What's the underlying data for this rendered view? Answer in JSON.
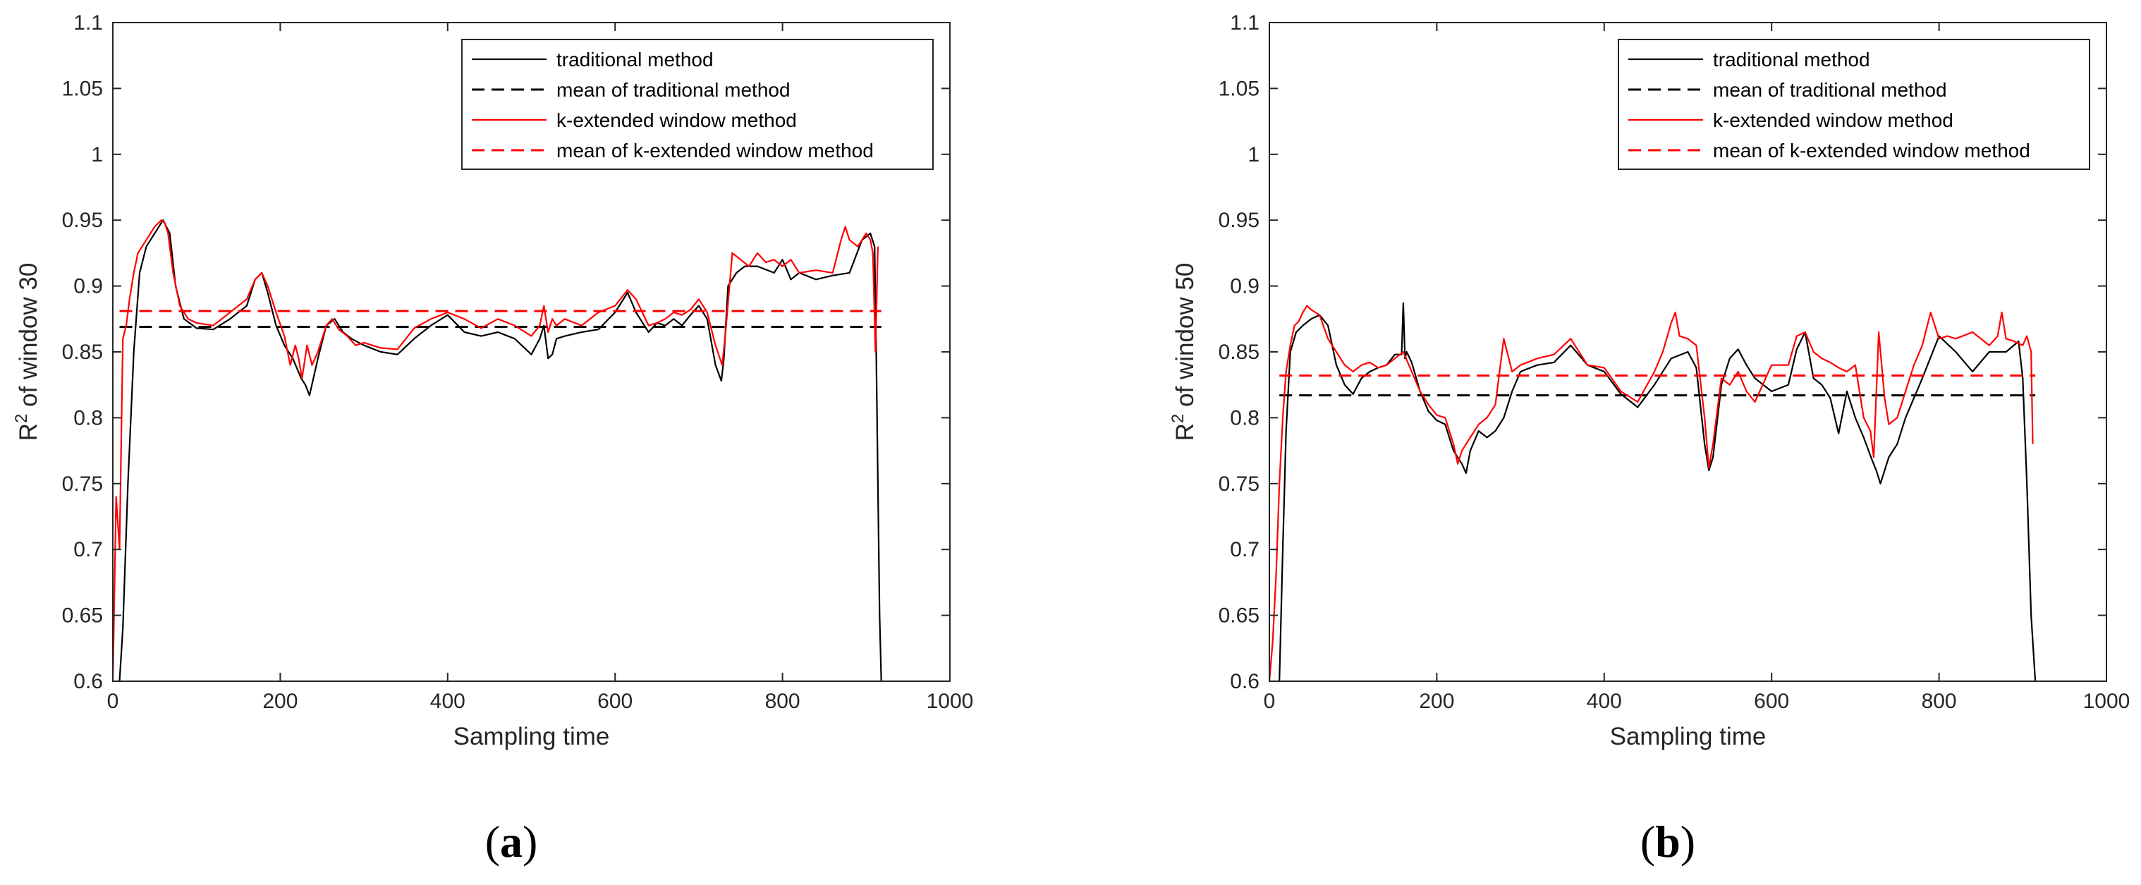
{
  "figure": {
    "captions": [
      {
        "open": "(",
        "letter": "a",
        "close": ")"
      },
      {
        "open": "(",
        "letter": "b",
        "close": ")"
      }
    ]
  },
  "chart_data": [
    {
      "type": "line",
      "xlabel": "Sampling time",
      "ylabel_main": "R",
      "ylabel_sup": "2",
      "ylabel_rest": " of window 30",
      "xlim": [
        0,
        1000
      ],
      "ylim": [
        0.6,
        1.1
      ],
      "xticks": [
        0,
        200,
        400,
        600,
        800,
        1000
      ],
      "xtick_labels": [
        "0",
        "200",
        "400",
        "600",
        "800",
        "1000"
      ],
      "yticks": [
        0.6,
        0.65,
        0.7,
        0.75,
        0.8,
        0.85,
        0.9,
        0.95,
        1.0,
        1.05,
        1.1
      ],
      "ytick_labels": [
        "0.6",
        "0.65",
        "0.7",
        "0.75",
        "0.8",
        "0.85",
        "0.9",
        "0.95",
        "1",
        "1.05",
        "1.1"
      ],
      "legend_position": "top-right",
      "legend": [
        "traditional method",
        "mean of traditional method",
        "k-extended window method",
        "mean of k-extended window method"
      ],
      "series": [
        {
          "name": "traditional method",
          "color": "#000000",
          "style": "solid",
          "x": [
            8,
            12,
            18,
            25,
            32,
            40,
            50,
            60,
            68,
            75,
            85,
            100,
            120,
            140,
            160,
            170,
            178,
            185,
            195,
            205,
            215,
            225,
            230,
            235,
            245,
            255,
            265,
            275,
            285,
            300,
            320,
            340,
            360,
            380,
            400,
            420,
            440,
            460,
            480,
            500,
            510,
            515,
            520,
            525,
            530,
            540,
            560,
            580,
            600,
            615,
            625,
            640,
            650,
            660,
            670,
            680,
            690,
            700,
            710,
            720,
            727,
            730,
            735,
            745,
            755,
            770,
            790,
            800,
            810,
            820,
            840,
            860,
            880,
            895,
            905,
            910,
            912,
            914,
            916,
            918
          ],
          "y": [
            0.6,
            0.64,
            0.75,
            0.85,
            0.91,
            0.93,
            0.94,
            0.95,
            0.94,
            0.9,
            0.875,
            0.868,
            0.867,
            0.875,
            0.885,
            0.905,
            0.91,
            0.895,
            0.87,
            0.855,
            0.845,
            0.83,
            0.825,
            0.817,
            0.845,
            0.87,
            0.875,
            0.865,
            0.86,
            0.855,
            0.85,
            0.848,
            0.86,
            0.87,
            0.878,
            0.865,
            0.862,
            0.865,
            0.86,
            0.848,
            0.86,
            0.87,
            0.845,
            0.848,
            0.86,
            0.862,
            0.865,
            0.867,
            0.88,
            0.895,
            0.88,
            0.865,
            0.872,
            0.87,
            0.875,
            0.87,
            0.878,
            0.885,
            0.875,
            0.84,
            0.828,
            0.845,
            0.9,
            0.91,
            0.915,
            0.915,
            0.91,
            0.92,
            0.905,
            0.91,
            0.905,
            0.908,
            0.91,
            0.935,
            0.94,
            0.93,
            0.85,
            0.75,
            0.65,
            0.6
          ]
        },
        {
          "name": "mean of traditional method",
          "color": "#000000",
          "style": "dashed",
          "x": [
            8,
            918
          ],
          "y": [
            0.869,
            0.869
          ]
        },
        {
          "name": "k-extended window method",
          "color": "#ff0000",
          "style": "solid",
          "x": [
            0,
            4,
            8,
            12,
            16,
            20,
            25,
            30,
            40,
            50,
            58,
            62,
            66,
            72,
            80,
            90,
            100,
            120,
            140,
            160,
            170,
            178,
            185,
            195,
            205,
            212,
            218,
            222,
            226,
            232,
            238,
            245,
            255,
            262,
            270,
            280,
            290,
            300,
            320,
            340,
            360,
            380,
            400,
            420,
            440,
            460,
            480,
            500,
            510,
            515,
            520,
            525,
            530,
            540,
            560,
            580,
            600,
            615,
            625,
            640,
            650,
            660,
            670,
            680,
            690,
            700,
            710,
            720,
            728,
            732,
            740,
            750,
            760,
            770,
            780,
            790,
            800,
            810,
            820,
            840,
            860,
            870,
            875,
            880,
            890,
            900,
            905,
            908,
            911,
            914
          ],
          "y": [
            0.6,
            0.74,
            0.7,
            0.86,
            0.87,
            0.89,
            0.91,
            0.925,
            0.935,
            0.945,
            0.95,
            0.948,
            0.94,
            0.91,
            0.885,
            0.875,
            0.872,
            0.87,
            0.88,
            0.89,
            0.905,
            0.91,
            0.9,
            0.88,
            0.862,
            0.84,
            0.855,
            0.845,
            0.83,
            0.855,
            0.84,
            0.85,
            0.87,
            0.875,
            0.867,
            0.862,
            0.855,
            0.857,
            0.853,
            0.852,
            0.868,
            0.875,
            0.88,
            0.875,
            0.868,
            0.875,
            0.87,
            0.862,
            0.87,
            0.885,
            0.865,
            0.875,
            0.87,
            0.875,
            0.87,
            0.88,
            0.885,
            0.897,
            0.89,
            0.87,
            0.872,
            0.875,
            0.88,
            0.878,
            0.882,
            0.89,
            0.88,
            0.855,
            0.84,
            0.865,
            0.925,
            0.92,
            0.915,
            0.925,
            0.918,
            0.92,
            0.915,
            0.92,
            0.91,
            0.912,
            0.91,
            0.935,
            0.945,
            0.935,
            0.93,
            0.94,
            0.935,
            0.925,
            0.85,
            0.93
          ]
        },
        {
          "name": "mean of k-extended window method",
          "color": "#ff0000",
          "style": "dashed",
          "x": [
            8,
            918
          ],
          "y": [
            0.881,
            0.881
          ]
        }
      ]
    },
    {
      "type": "line",
      "xlabel": "Sampling time",
      "ylabel_main": "R",
      "ylabel_sup": "2",
      "ylabel_rest": " of window 50",
      "xlim": [
        0,
        1000
      ],
      "ylim": [
        0.6,
        1.1
      ],
      "xticks": [
        0,
        200,
        400,
        600,
        800,
        1000
      ],
      "xtick_labels": [
        "0",
        "200",
        "400",
        "600",
        "800",
        "1000"
      ],
      "yticks": [
        0.6,
        0.65,
        0.7,
        0.75,
        0.8,
        0.85,
        0.9,
        0.95,
        1.0,
        1.05,
        1.1
      ],
      "ytick_labels": [
        "0.6",
        "0.65",
        "0.7",
        "0.75",
        "0.8",
        "0.85",
        "0.9",
        "0.95",
        "1",
        "1.05",
        "1.1"
      ],
      "legend_position": "top-right",
      "legend": [
        "traditional method",
        "mean of traditional method",
        "k-extended window method",
        "mean of k-extended window method"
      ],
      "series": [
        {
          "name": "traditional method",
          "color": "#000000",
          "style": "solid",
          "x": [
            12,
            16,
            20,
            25,
            32,
            40,
            50,
            60,
            70,
            80,
            90,
            100,
            110,
            120,
            130,
            140,
            150,
            158,
            160,
            162,
            164,
            170,
            180,
            190,
            200,
            210,
            220,
            230,
            235,
            240,
            250,
            260,
            270,
            280,
            290,
            300,
            320,
            340,
            360,
            380,
            400,
            420,
            440,
            460,
            480,
            500,
            510,
            520,
            525,
            530,
            540,
            550,
            560,
            570,
            580,
            600,
            620,
            630,
            640,
            650,
            660,
            670,
            680,
            690,
            700,
            710,
            720,
            725,
            730,
            740,
            750,
            760,
            780,
            800,
            820,
            840,
            860,
            880,
            895,
            900,
            905,
            910,
            915
          ],
          "y": [
            0.6,
            0.7,
            0.79,
            0.85,
            0.865,
            0.87,
            0.875,
            0.878,
            0.87,
            0.84,
            0.825,
            0.818,
            0.83,
            0.835,
            0.838,
            0.84,
            0.848,
            0.848,
            0.887,
            0.845,
            0.85,
            0.842,
            0.82,
            0.805,
            0.798,
            0.795,
            0.775,
            0.765,
            0.758,
            0.775,
            0.79,
            0.785,
            0.79,
            0.8,
            0.82,
            0.835,
            0.84,
            0.842,
            0.855,
            0.84,
            0.835,
            0.818,
            0.808,
            0.825,
            0.845,
            0.85,
            0.838,
            0.78,
            0.76,
            0.77,
            0.825,
            0.845,
            0.852,
            0.84,
            0.83,
            0.82,
            0.825,
            0.852,
            0.865,
            0.83,
            0.825,
            0.815,
            0.788,
            0.82,
            0.8,
            0.785,
            0.768,
            0.76,
            0.75,
            0.77,
            0.78,
            0.8,
            0.83,
            0.862,
            0.85,
            0.835,
            0.85,
            0.85,
            0.858,
            0.83,
            0.75,
            0.65,
            0.6
          ]
        },
        {
          "name": "mean of traditional method",
          "color": "#000000",
          "style": "dashed",
          "x": [
            12,
            915
          ],
          "y": [
            0.817,
            0.817
          ]
        },
        {
          "name": "k-extended window method",
          "color": "#ff0000",
          "style": "solid",
          "x": [
            0,
            4,
            8,
            12,
            16,
            20,
            25,
            30,
            35,
            40,
            45,
            50,
            55,
            60,
            70,
            80,
            90,
            100,
            110,
            120,
            130,
            140,
            150,
            160,
            170,
            180,
            190,
            200,
            210,
            220,
            225,
            230,
            240,
            250,
            260,
            270,
            280,
            290,
            300,
            320,
            340,
            360,
            380,
            400,
            420,
            440,
            460,
            470,
            480,
            485,
            490,
            500,
            510,
            520,
            525,
            530,
            540,
            550,
            560,
            570,
            580,
            600,
            620,
            630,
            640,
            650,
            660,
            670,
            680,
            690,
            700,
            710,
            718,
            722,
            728,
            735,
            740,
            750,
            760,
            770,
            780,
            790,
            800,
            810,
            820,
            840,
            860,
            870,
            875,
            880,
            890,
            900,
            905,
            910,
            912
          ],
          "y": [
            0.6,
            0.63,
            0.68,
            0.75,
            0.8,
            0.835,
            0.855,
            0.87,
            0.873,
            0.88,
            0.885,
            0.882,
            0.88,
            0.878,
            0.86,
            0.85,
            0.84,
            0.835,
            0.84,
            0.842,
            0.838,
            0.84,
            0.845,
            0.85,
            0.835,
            0.82,
            0.81,
            0.802,
            0.8,
            0.78,
            0.765,
            0.775,
            0.785,
            0.795,
            0.8,
            0.81,
            0.86,
            0.835,
            0.84,
            0.845,
            0.848,
            0.86,
            0.84,
            0.838,
            0.82,
            0.812,
            0.835,
            0.85,
            0.872,
            0.88,
            0.862,
            0.86,
            0.855,
            0.8,
            0.762,
            0.78,
            0.83,
            0.825,
            0.835,
            0.82,
            0.812,
            0.84,
            0.84,
            0.862,
            0.865,
            0.85,
            0.845,
            0.842,
            0.838,
            0.835,
            0.84,
            0.8,
            0.79,
            0.77,
            0.865,
            0.815,
            0.795,
            0.8,
            0.82,
            0.84,
            0.855,
            0.88,
            0.86,
            0.862,
            0.86,
            0.865,
            0.855,
            0.862,
            0.88,
            0.86,
            0.858,
            0.855,
            0.862,
            0.85,
            0.78
          ]
        },
        {
          "name": "mean of k-extended window method",
          "color": "#ff0000",
          "style": "dashed",
          "x": [
            12,
            915
          ],
          "y": [
            0.832,
            0.832
          ]
        }
      ]
    }
  ]
}
